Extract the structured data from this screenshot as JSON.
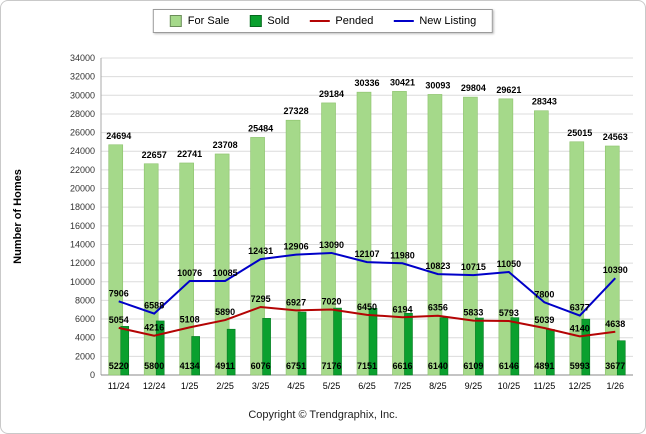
{
  "legend": {
    "items": [
      {
        "label": "For Sale",
        "type": "bar",
        "color": "#A5D98A"
      },
      {
        "label": "Sold",
        "type": "bar",
        "color": "#0AA02E"
      },
      {
        "label": "Pended",
        "type": "line",
        "color": "#B40404"
      },
      {
        "label": "New Listing",
        "type": "line",
        "color": "#0000C8"
      }
    ]
  },
  "chart_data": {
    "type": "bar",
    "title": "",
    "xlabel": "",
    "ylabel": "Number of Homes",
    "ylim": [
      0,
      34000
    ],
    "ytick_step": 2000,
    "grid": true,
    "legend_position": "top",
    "categories": [
      "11/24",
      "12/24",
      "1/25",
      "2/25",
      "3/25",
      "4/25",
      "5/25",
      "6/25",
      "7/25",
      "8/25",
      "9/25",
      "10/25",
      "11/25",
      "12/25",
      "1/26"
    ],
    "series": [
      {
        "name": "For Sale",
        "type": "bar",
        "color": "#A5D98A",
        "values": [
          24694,
          22657,
          22741,
          23708,
          25484,
          27328,
          29184,
          30336,
          30421,
          30093,
          29804,
          29621,
          28343,
          25015,
          24563
        ]
      },
      {
        "name": "Sold",
        "type": "bar",
        "color": "#0AA02E",
        "values": [
          5220,
          5800,
          4134,
          4911,
          6076,
          6751,
          7176,
          7151,
          6616,
          6140,
          6109,
          6146,
          4891,
          5993,
          3677
        ]
      },
      {
        "name": "Pended",
        "type": "line",
        "color": "#B40404",
        "values": [
          5054,
          4216,
          5108,
          5890,
          7295,
          6927,
          7020,
          6450,
          6194,
          6356,
          5833,
          5793,
          5039,
          4140,
          4638
        ]
      },
      {
        "name": "New Listing",
        "type": "line",
        "color": "#0000C8",
        "values": [
          7906,
          6588,
          10076,
          10085,
          12431,
          12906,
          13090,
          12107,
          11980,
          10823,
          10715,
          11050,
          7800,
          6377,
          10390
        ]
      }
    ]
  },
  "footer": {
    "copyright": "Copyright © Trendgraphix, Inc."
  }
}
